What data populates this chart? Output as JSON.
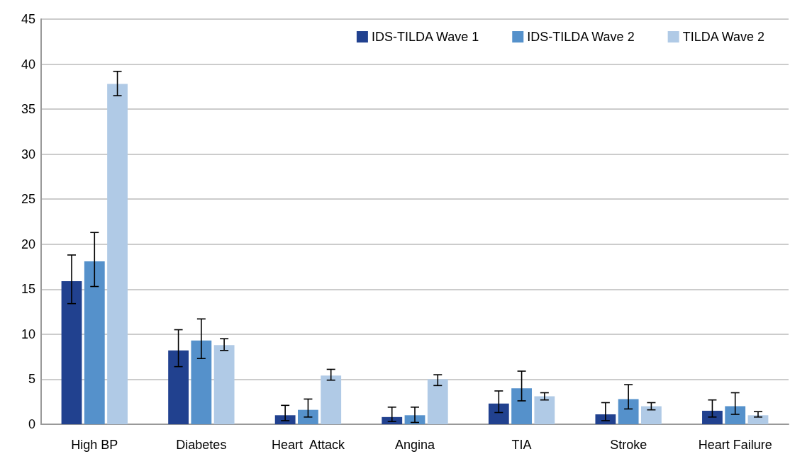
{
  "chart_data": {
    "type": "bar",
    "categories": [
      "High BP",
      "Diabetes",
      "Heart  Attack",
      "Angina",
      "TIA",
      "Stroke",
      "Heart Failure"
    ],
    "series": [
      {
        "name": "IDS-TILDA Wave 1",
        "color": "#21418f",
        "values": [
          15.9,
          8.2,
          1.0,
          0.8,
          2.3,
          1.1,
          1.5
        ],
        "errors": [
          [
            13.4,
            18.8
          ],
          [
            6.4,
            10.5
          ],
          [
            0.4,
            2.1
          ],
          [
            0.3,
            1.9
          ],
          [
            1.3,
            3.7
          ],
          [
            0.4,
            2.4
          ],
          [
            0.8,
            2.7
          ]
        ]
      },
      {
        "name": "IDS-TILDA Wave 2",
        "color": "#5591cb",
        "values": [
          18.1,
          9.3,
          1.6,
          1.0,
          4.0,
          2.8,
          2.0
        ],
        "errors": [
          [
            15.3,
            21.3
          ],
          [
            7.3,
            11.7
          ],
          [
            0.8,
            2.8
          ],
          [
            0.2,
            1.9
          ],
          [
            2.6,
            5.9
          ],
          [
            1.7,
            4.4
          ],
          [
            1.1,
            3.5
          ]
        ]
      },
      {
        "name": "TILDA Wave 2",
        "color": "#b0cae6",
        "values": [
          37.8,
          8.8,
          5.4,
          5.0,
          3.1,
          2.0,
          1.0
        ],
        "errors": [
          [
            36.5,
            39.2
          ],
          [
            8.2,
            9.5
          ],
          [
            4.9,
            6.1
          ],
          [
            4.3,
            5.5
          ],
          [
            2.7,
            3.5
          ],
          [
            1.6,
            2.4
          ],
          [
            0.8,
            1.4
          ]
        ]
      }
    ],
    "ylim": [
      0,
      45
    ],
    "yticks": [
      0,
      5,
      10,
      15,
      20,
      25,
      30,
      35,
      40,
      45
    ],
    "grid": "y",
    "legend": "top right"
  }
}
